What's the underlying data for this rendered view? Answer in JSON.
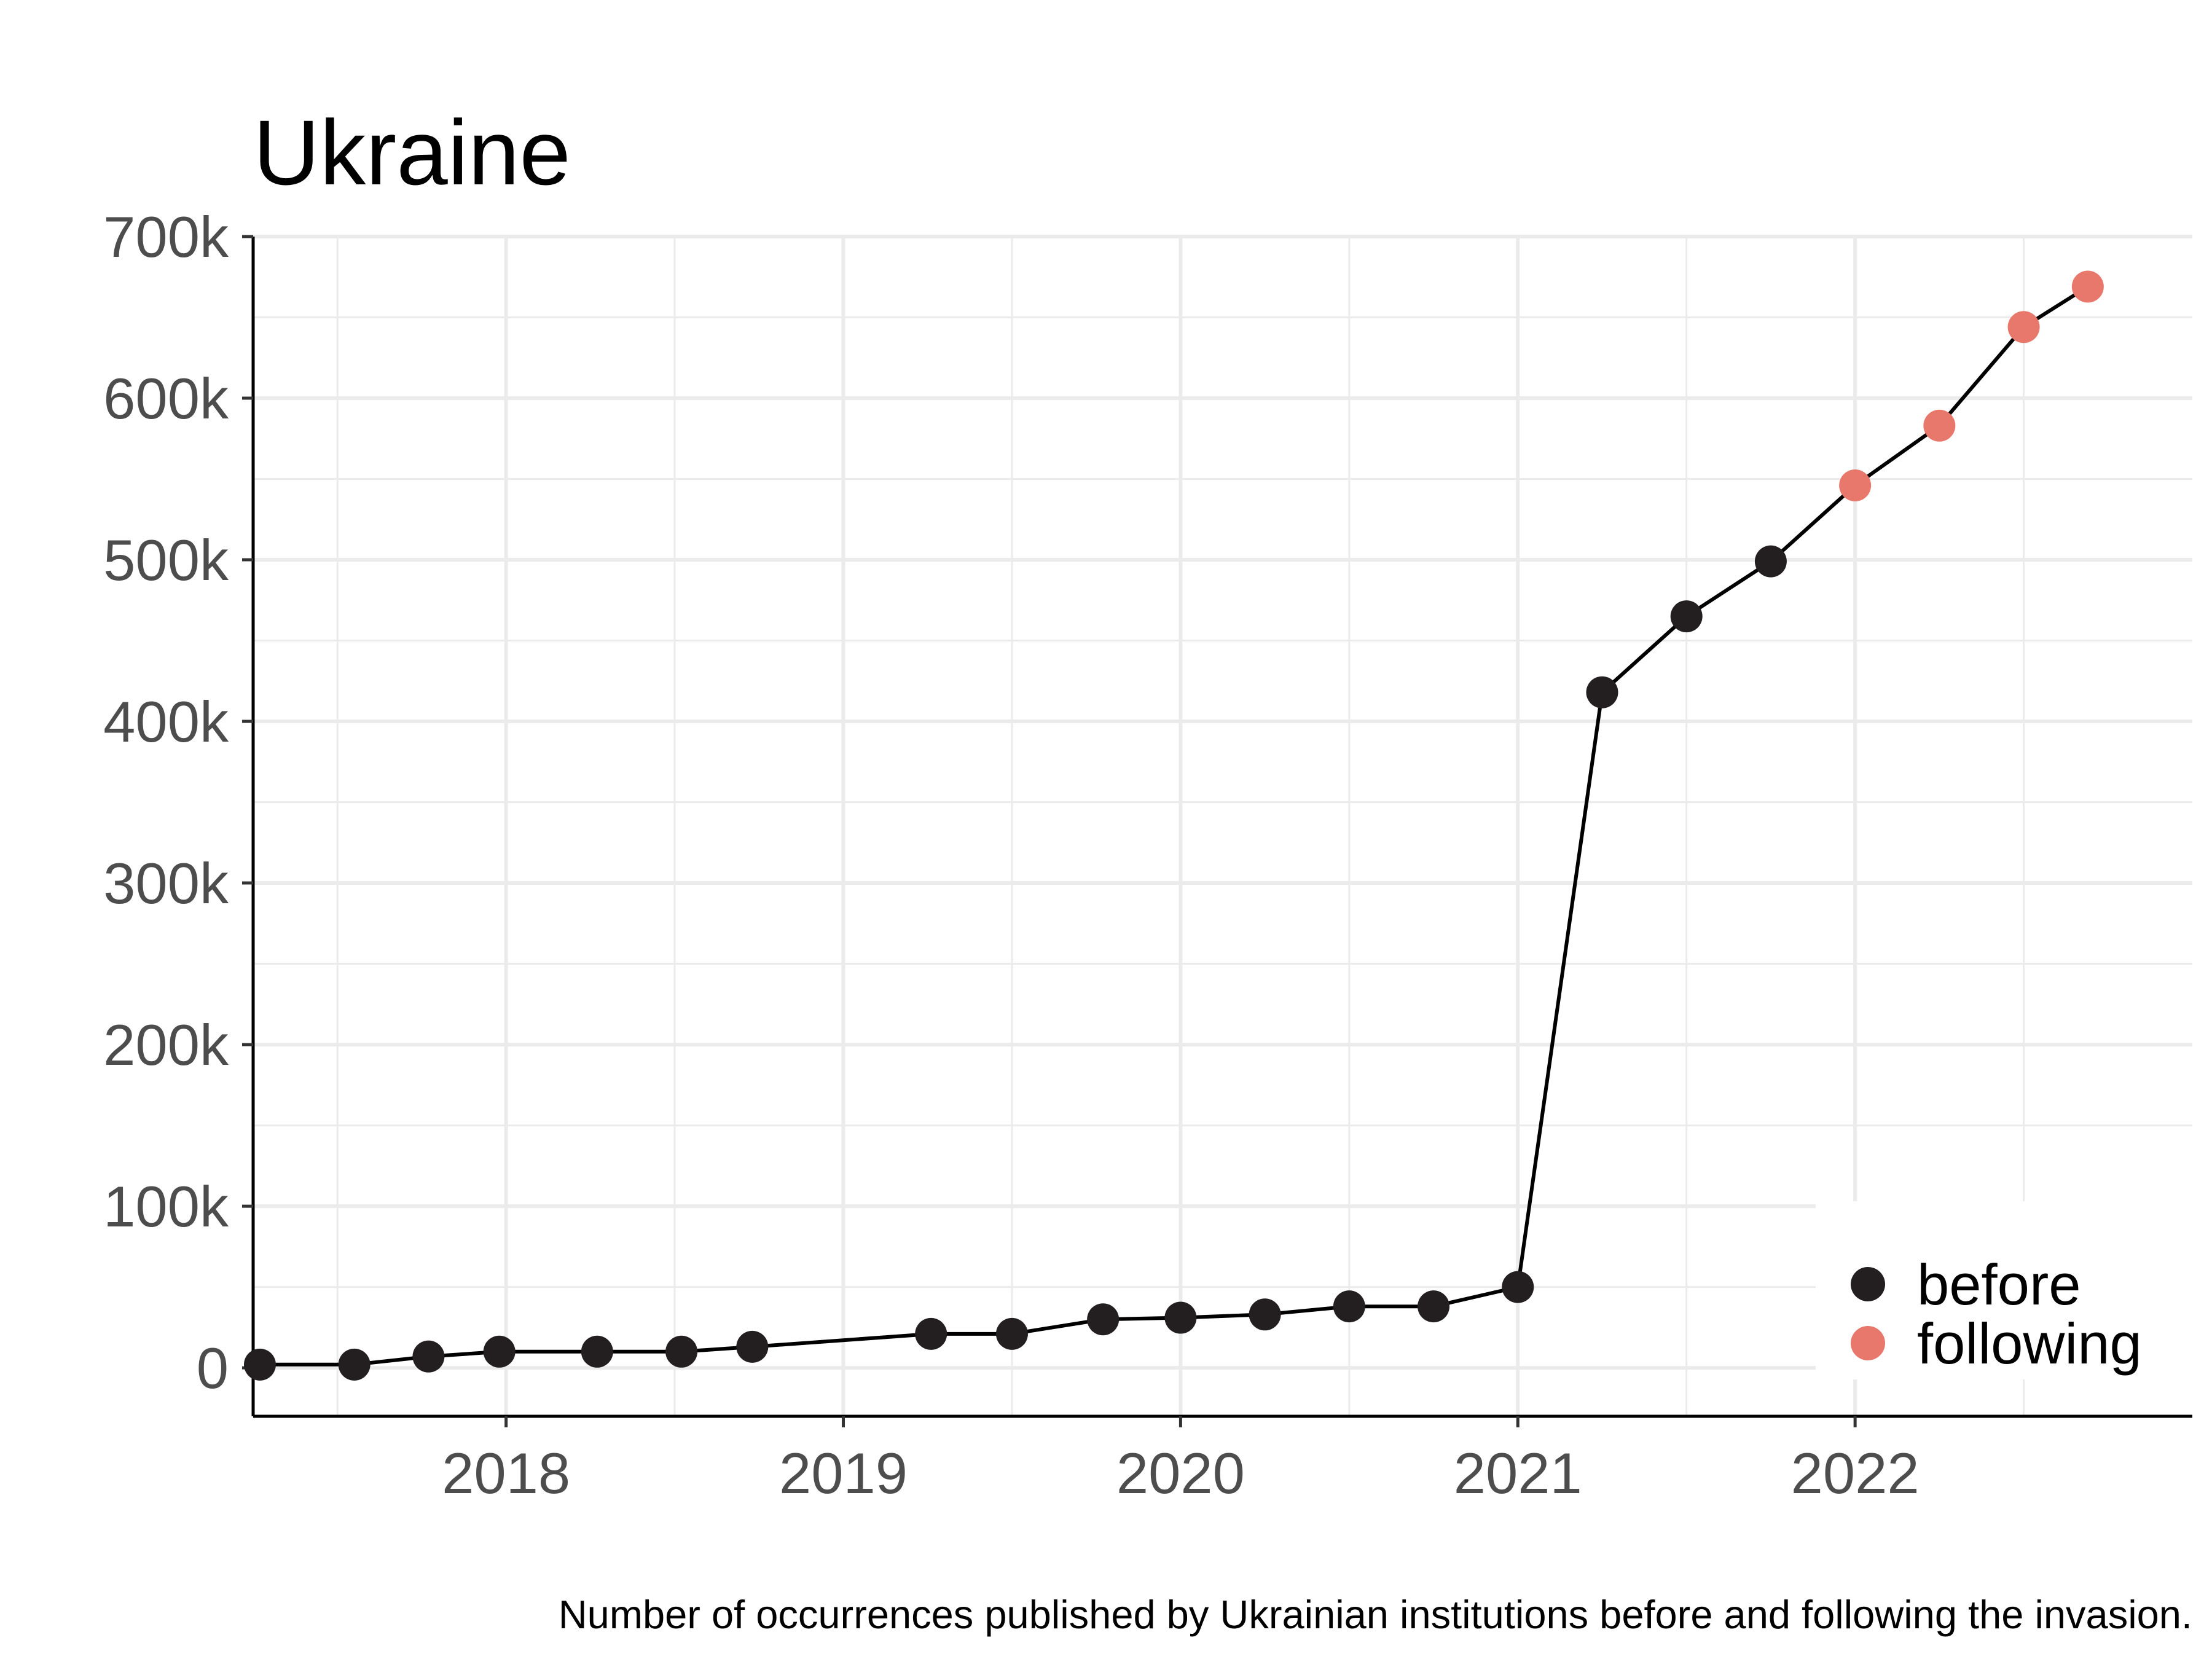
{
  "chart_data": {
    "type": "line",
    "title": "Ukraine",
    "caption": "Number of occurrences published by Ukrainian institutions before and following the invasion.",
    "xlabel": "",
    "ylabel": "",
    "x_ticks": [
      2018,
      2019,
      2020,
      2021,
      2022
    ],
    "y_ticks": [
      0,
      100000,
      200000,
      300000,
      400000,
      500000,
      600000,
      700000
    ],
    "y_tick_labels": [
      "0",
      "100k",
      "200k",
      "300k",
      "400k",
      "500k",
      "600k",
      "700k"
    ],
    "xlim": [
      2017.25,
      2023.0
    ],
    "ylim": [
      -30000,
      700000
    ],
    "grid": true,
    "legend_position": "bottom-right",
    "series": [
      {
        "name": "before",
        "color": "#231f20",
        "x": [
          2017.27,
          2017.55,
          2017.77,
          2017.98,
          2018.27,
          2018.52,
          2018.73,
          2019.26,
          2019.5,
          2019.77,
          2020.0,
          2020.25,
          2020.5,
          2020.75,
          2021.0,
          2021.25,
          2021.5,
          2021.75
        ],
        "y": [
          2000,
          2000,
          7000,
          10000,
          10000,
          10000,
          13000,
          21000,
          21000,
          30000,
          31000,
          33000,
          38000,
          38000,
          50000,
          418000,
          465000,
          499000
        ]
      },
      {
        "name": "following",
        "color": "#e9786c",
        "x": [
          2022.0,
          2022.25,
          2022.5,
          2022.69
        ],
        "y": [
          546000,
          583000,
          644000,
          669000
        ]
      }
    ]
  }
}
